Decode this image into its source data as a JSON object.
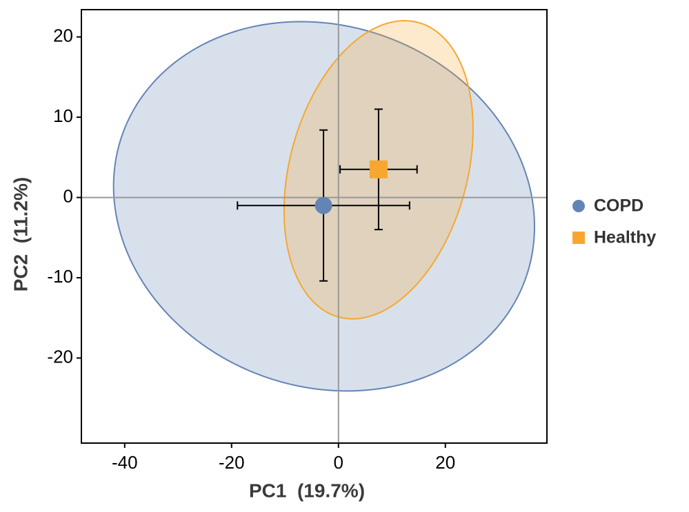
{
  "chart_data": {
    "type": "scatter",
    "xlabel": "PC1  (19.7%)",
    "ylabel": "PC2  (11.2%)",
    "xlim": [
      -48.1,
      39.0
    ],
    "ylim": [
      -30.6,
      23.4
    ],
    "xticks": [
      -40,
      -20,
      0,
      20
    ],
    "yticks": [
      20,
      10,
      0,
      -10,
      -20
    ],
    "grid": false,
    "reference_lines": {
      "x": 0,
      "y": 0
    },
    "legend": "right",
    "series": [
      {
        "name": "COPD",
        "color": "#6384b5",
        "marker": "circle",
        "x": [
          -2.8
        ],
        "values": [
          -1.0
        ],
        "xerr": [
          16.1
        ],
        "yerr": [
          9.4
        ],
        "ellipse": {
          "cx": -2.7,
          "cy": -1.1,
          "a": 39.5,
          "b": 22.8,
          "angle": -5.5
        }
      },
      {
        "name": "Healthy",
        "color": "#f7a72f",
        "marker": "square",
        "x": [
          7.5
        ],
        "values": [
          3.5
        ],
        "xerr": [
          7.2
        ],
        "yerr": [
          7.5
        ],
        "ellipse": {
          "cx": 7.5,
          "cy": 3.45,
          "a": 20.5,
          "b": 15.4,
          "angle": 50.1
        }
      }
    ]
  }
}
